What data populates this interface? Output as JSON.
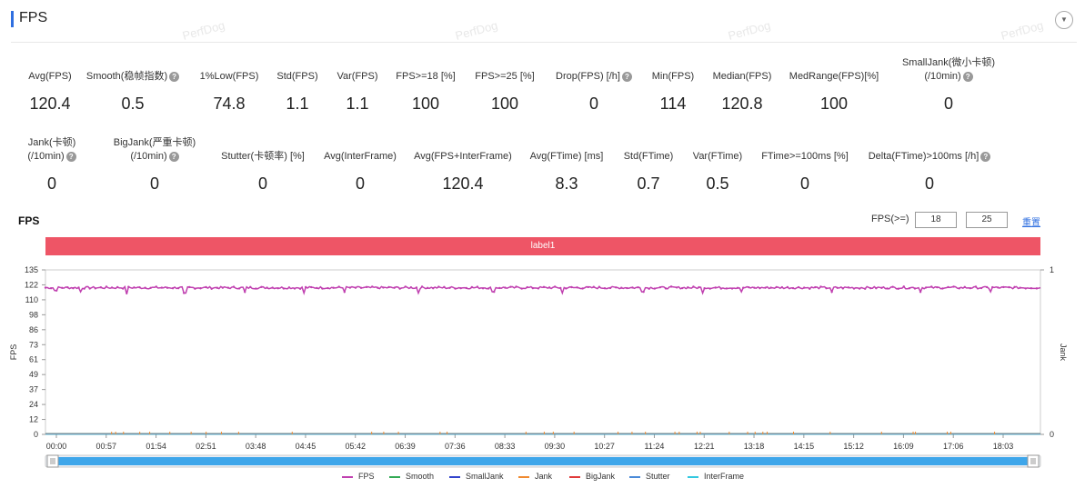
{
  "header": {
    "title": "FPS"
  },
  "watermark": "PerfDog",
  "metrics_row1": [
    {
      "label": "Avg(FPS)",
      "value": "120.4",
      "help": false
    },
    {
      "label": "Smooth(稳帧指数)",
      "value": "0.5",
      "help": true
    },
    {
      "label": "1%Low(FPS)",
      "value": "74.8",
      "help": false
    },
    {
      "label": "Std(FPS)",
      "value": "1.1",
      "help": false
    },
    {
      "label": "Var(FPS)",
      "value": "1.1",
      "help": false
    },
    {
      "label": "FPS>=18 [%]",
      "value": "100",
      "help": false
    },
    {
      "label": "FPS>=25 [%]",
      "value": "100",
      "help": false
    },
    {
      "label": "Drop(FPS) [/h]",
      "value": "0",
      "help": true
    },
    {
      "label": "Min(FPS)",
      "value": "114",
      "help": false
    },
    {
      "label": "Median(FPS)",
      "value": "120.8",
      "help": false
    },
    {
      "label": "MedRange(FPS)[%]",
      "value": "100",
      "help": false
    },
    {
      "label": "SmallJank(微小卡顿)",
      "label2": "(/10min)",
      "value": "0",
      "help": true
    }
  ],
  "metrics_row2": [
    {
      "label": "Jank(卡顿)",
      "label2": "(/10min)",
      "value": "0",
      "help": true
    },
    {
      "label": "BigJank(严重卡顿)",
      "label2": "(/10min)",
      "value": "0",
      "help": true
    },
    {
      "label": "Stutter(卡顿率) [%]",
      "value": "0",
      "help": false
    },
    {
      "label": "Avg(InterFrame)",
      "value": "0",
      "help": false
    },
    {
      "label": "Avg(FPS+InterFrame)",
      "value": "120.4",
      "help": false
    },
    {
      "label": "Avg(FTime) [ms]",
      "value": "8.3",
      "help": false
    },
    {
      "label": "Std(FTime)",
      "value": "0.7",
      "help": false
    },
    {
      "label": "Var(FTime)",
      "value": "0.5",
      "help": false
    },
    {
      "label": "FTime>=100ms [%]",
      "value": "0",
      "help": false
    },
    {
      "label": "Delta(FTime)>100ms [/h]",
      "value": "0",
      "help": true
    }
  ],
  "chart_section": {
    "title": "FPS",
    "threshold_label": "FPS(>=)",
    "threshold1": "18",
    "threshold2": "25",
    "reset_label": "重置",
    "range_label": "label1"
  },
  "chart_data": {
    "type": "line",
    "ylabel": "FPS",
    "y2label": "Jank",
    "ylim": [
      0,
      135
    ],
    "y2lim": [
      0,
      1
    ],
    "yticks": [
      "135",
      "122",
      "110",
      "98",
      "86",
      "73",
      "61",
      "49",
      "37",
      "24",
      "12",
      "0"
    ],
    "y2ticks": [
      "1",
      "0"
    ],
    "xticks": [
      "00:00",
      "00:57",
      "01:54",
      "02:51",
      "03:48",
      "04:45",
      "05:42",
      "06:39",
      "07:36",
      "08:33",
      "09:30",
      "10:27",
      "11:24",
      "12:21",
      "13:18",
      "14:15",
      "15:12",
      "16:09",
      "17:06",
      "18:03"
    ],
    "fps_mean": 120.4,
    "fps_min": 114,
    "fps_dips": [
      [
        0.01,
        118
      ],
      [
        0.035,
        117
      ],
      [
        0.082,
        115
      ],
      [
        0.14,
        116
      ],
      [
        0.2,
        117
      ],
      [
        0.26,
        116
      ],
      [
        0.3,
        117
      ],
      [
        0.375,
        116
      ],
      [
        0.45,
        117
      ],
      [
        0.52,
        116
      ],
      [
        0.6,
        117
      ],
      [
        0.66,
        116
      ],
      [
        0.7,
        117
      ],
      [
        0.79,
        117
      ],
      [
        0.88,
        117
      ],
      [
        0.95,
        117
      ]
    ],
    "legend": [
      {
        "name": "FPS",
        "color": "#c040b0"
      },
      {
        "name": "Smooth",
        "color": "#33aa55"
      },
      {
        "name": "SmallJank",
        "color": "#3344cc"
      },
      {
        "name": "Jank",
        "color": "#f08a30"
      },
      {
        "name": "BigJank",
        "color": "#e03b3b"
      },
      {
        "name": "Stutter",
        "color": "#4a8ad8"
      },
      {
        "name": "InterFrame",
        "color": "#33c8e0"
      }
    ]
  }
}
